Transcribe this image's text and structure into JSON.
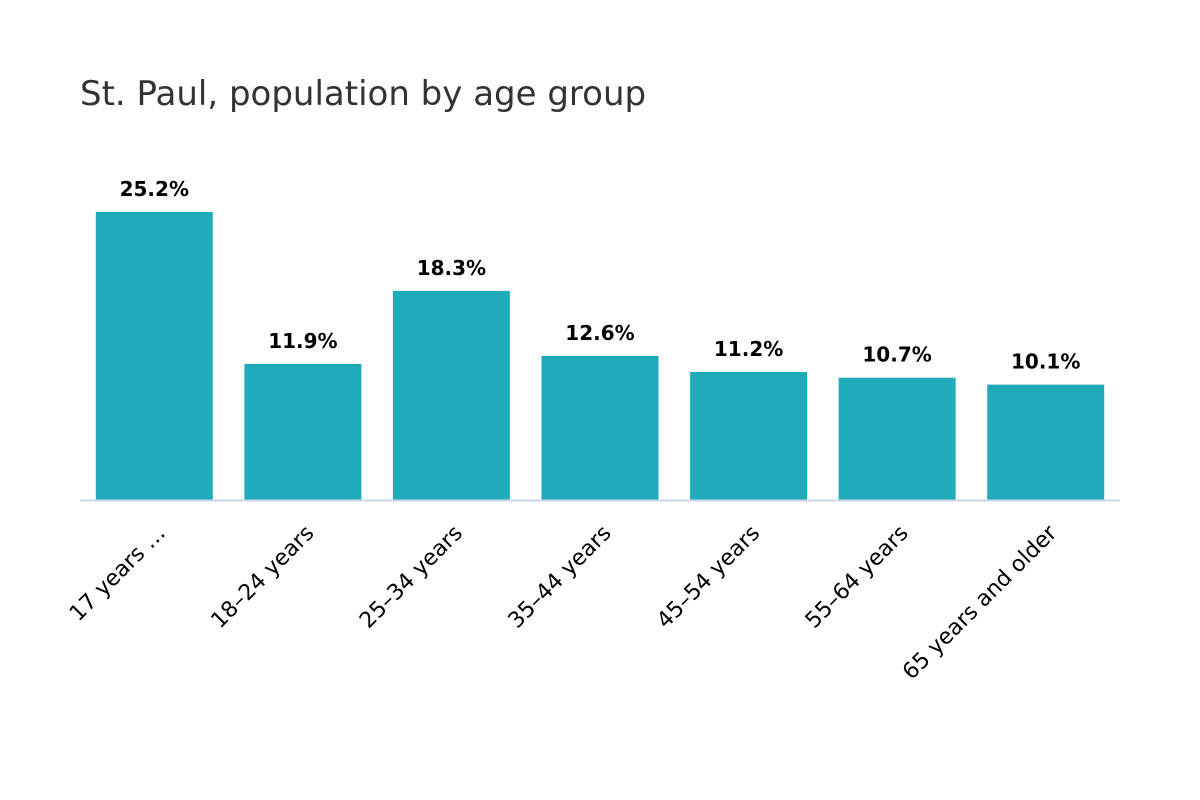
{
  "chart_data": {
    "type": "bar",
    "title": "St. Paul, population by age group",
    "categories": [
      "17 years …",
      "18–24 years",
      "25–34 years",
      "35–44 years",
      "45–54 years",
      "55–64 years",
      "65 years and older"
    ],
    "values": [
      25.2,
      11.9,
      18.3,
      12.6,
      11.2,
      10.7,
      10.1
    ],
    "data_labels": [
      "25.2%",
      "11.9%",
      "18.3%",
      "12.6%",
      "11.2%",
      "10.7%",
      "10.1%"
    ],
    "xlabel": "",
    "ylabel": "",
    "ylim": [
      0,
      25.2
    ],
    "grid": false,
    "legend": "none",
    "bar_color": "#20abbb",
    "axis_color": "#ccd6eb"
  }
}
